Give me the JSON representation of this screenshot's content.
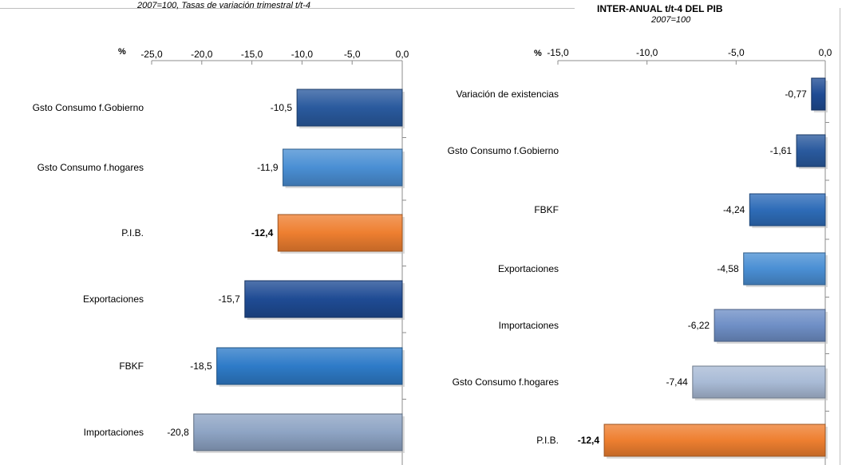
{
  "chart_data": [
    {
      "type": "bar",
      "orientation": "horizontal",
      "title": "",
      "subtitle": "2007=100, Tasas de variación trimestral t/t-4",
      "unit_label": "%",
      "xlim": [
        -25,
        0
      ],
      "ticks": [
        -25,
        -20,
        -15,
        -10,
        -5,
        0
      ],
      "tick_labels": [
        "-25,0",
        "-20,0",
        "-15,0",
        "-10,0",
        "-5,0",
        "0,0"
      ],
      "categories": [
        "Gsto Consumo f.Gobierno",
        "Gsto Consumo f.hogares",
        "P.I.B.",
        "Exportaciones",
        "FBKF",
        "Importaciones"
      ],
      "values": [
        -10.5,
        -11.9,
        -12.4,
        -15.7,
        -18.5,
        -20.8
      ],
      "value_labels": [
        "-10,5",
        "-11,9",
        "-12,4",
        "-15,7",
        "-18,5",
        "-20,8"
      ],
      "bold_value": [
        false,
        false,
        true,
        false,
        false,
        false
      ],
      "colors": [
        "#2a5a9e",
        "#4a8fd4",
        "#ee7f30",
        "#1f4b94",
        "#2e7bc8",
        "#8ea4c4"
      ],
      "grid": false,
      "legend": "none"
    },
    {
      "type": "bar",
      "orientation": "horizontal",
      "title": "INTER-ANUAL t/t-4 DEL PIB",
      "subtitle": "2007=100",
      "unit_label": "%",
      "xlim": [
        -15,
        0
      ],
      "ticks": [
        -15,
        -10,
        -5,
        0
      ],
      "tick_labels": [
        "-15,0",
        "-10,0",
        "-5,0",
        "0,0"
      ],
      "categories": [
        "Variación de existencias",
        "Gsto Consumo f.Gobierno",
        "FBKF",
        "Exportaciones",
        "Importaciones",
        "Gsto Consumo f.hogares",
        "P.I.B."
      ],
      "values": [
        -0.77,
        -1.61,
        -4.24,
        -4.58,
        -6.22,
        -7.44,
        -12.4
      ],
      "value_labels": [
        "-0,77",
        "-1,61",
        "-4,24",
        "-4,58",
        "-6,22",
        "-7,44",
        "-12,4"
      ],
      "bold_value": [
        false,
        false,
        false,
        false,
        false,
        false,
        true
      ],
      "colors": [
        "#1f4b94",
        "#2a5a9e",
        "#2e6cb8",
        "#4a8fd4",
        "#6f8fc6",
        "#a9bbd6",
        "#ee7f30"
      ],
      "grid": false,
      "legend": "none"
    }
  ]
}
